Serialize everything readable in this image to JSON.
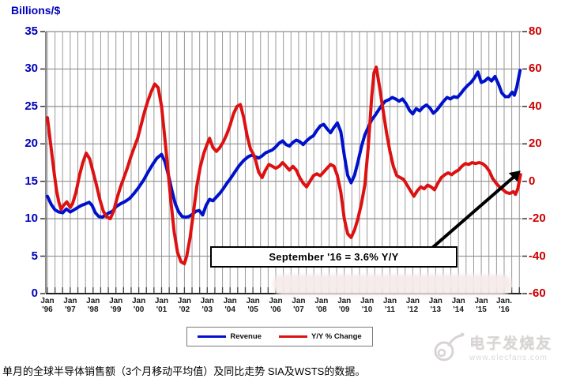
{
  "caption": "单月的全球半导体销售额（3个月移动平均值）及同比走势 SIA及WSTS的数据。",
  "watermark": {
    "brand": "电子发烧友",
    "site": "www.elecfans.com"
  },
  "legend": {
    "items": [
      {
        "label": "Revenue",
        "color": "#0011cc"
      },
      {
        "label": "Y/Y % Change",
        "color": "#dd1111"
      }
    ]
  },
  "annotation_label": "September '16 = 3.6% Y/Y",
  "chart_data": {
    "type": "line",
    "title": "",
    "y_axis_left": {
      "label": "Billions/$",
      "ticks": [
        35,
        30,
        25,
        20,
        15,
        10,
        5,
        0
      ],
      "range": [
        0,
        35
      ],
      "color": "#0000bb"
    },
    "y_axis_right": {
      "label": "Y/Y % Change",
      "ticks": [
        80,
        60,
        40,
        20,
        0,
        -20,
        -40,
        -60
      ],
      "range": [
        -60,
        80
      ],
      "color": "#cc0000"
    },
    "x_axis": {
      "range_years": [
        1996,
        2016.9
      ],
      "tick_labels": [
        [
          "Jan",
          "'96"
        ],
        [
          "Jan",
          "'97"
        ],
        [
          "Jan",
          "'98"
        ],
        [
          "Jan",
          "'99"
        ],
        [
          "Jan",
          "'00"
        ],
        [
          "Jan",
          "'01"
        ],
        [
          "Jan",
          "'02"
        ],
        [
          "Jan",
          "'03"
        ],
        [
          "Jan",
          "'04"
        ],
        [
          "Jan",
          "'05"
        ],
        [
          "Jan",
          "'06"
        ],
        [
          "Jan",
          "'07"
        ],
        [
          "Jan",
          "'08"
        ],
        [
          "Jan",
          "'09"
        ],
        [
          "Jan",
          "'10"
        ],
        [
          "Jan",
          "'11"
        ],
        [
          "Jan",
          "'12"
        ],
        [
          "Jan",
          "'13"
        ],
        [
          "Jan",
          "'14"
        ],
        [
          "Jan",
          "'15"
        ],
        [
          "Jan.",
          "'16"
        ]
      ]
    },
    "grid": {
      "vertical_every_months": 4,
      "horizontal_every": 5,
      "on": true
    },
    "legend_position": "bottom",
    "annotation": {
      "text": "September '16 = 3.6% Y/Y",
      "points_to": {
        "year": 2016.72,
        "value_pct": 3.6
      }
    },
    "series": [
      {
        "name": "Revenue",
        "axis": "left",
        "unit": "$B/month",
        "color": "#0011cc",
        "points": [
          [
            1996.0,
            13.0
          ],
          [
            1996.17,
            11.9
          ],
          [
            1996.33,
            11.2
          ],
          [
            1996.5,
            10.9
          ],
          [
            1996.67,
            10.8
          ],
          [
            1996.83,
            11.3
          ],
          [
            1997.0,
            10.9
          ],
          [
            1997.17,
            11.2
          ],
          [
            1997.33,
            11.5
          ],
          [
            1997.5,
            11.8
          ],
          [
            1997.67,
            12.0
          ],
          [
            1997.83,
            12.2
          ],
          [
            1997.95,
            11.8
          ],
          [
            1998.1,
            10.8
          ],
          [
            1998.25,
            10.3
          ],
          [
            1998.4,
            10.2
          ],
          [
            1998.55,
            10.5
          ],
          [
            1998.7,
            10.8
          ],
          [
            1998.85,
            11.0
          ],
          [
            1999.0,
            11.6
          ],
          [
            1999.2,
            12.0
          ],
          [
            1999.4,
            12.3
          ],
          [
            1999.6,
            12.7
          ],
          [
            1999.8,
            13.4
          ],
          [
            2000.0,
            14.2
          ],
          [
            2000.2,
            15.1
          ],
          [
            2000.4,
            16.2
          ],
          [
            2000.6,
            17.2
          ],
          [
            2000.8,
            18.1
          ],
          [
            2001.0,
            18.6
          ],
          [
            2001.15,
            17.6
          ],
          [
            2001.3,
            15.8
          ],
          [
            2001.45,
            13.8
          ],
          [
            2001.6,
            12.0
          ],
          [
            2001.75,
            10.9
          ],
          [
            2001.9,
            10.3
          ],
          [
            2002.05,
            10.2
          ],
          [
            2002.2,
            10.3
          ],
          [
            2002.35,
            10.6
          ],
          [
            2002.5,
            11.0
          ],
          [
            2002.65,
            11.1
          ],
          [
            2002.8,
            10.5
          ],
          [
            2002.95,
            11.8
          ],
          [
            2003.1,
            12.6
          ],
          [
            2003.25,
            12.4
          ],
          [
            2003.4,
            12.9
          ],
          [
            2003.55,
            13.4
          ],
          [
            2003.7,
            14.0
          ],
          [
            2003.85,
            14.7
          ],
          [
            2004.0,
            15.3
          ],
          [
            2004.2,
            16.2
          ],
          [
            2004.4,
            17.1
          ],
          [
            2004.6,
            17.8
          ],
          [
            2004.8,
            18.3
          ],
          [
            2004.95,
            18.5
          ],
          [
            2005.1,
            18.3
          ],
          [
            2005.25,
            18.1
          ],
          [
            2005.4,
            18.4
          ],
          [
            2005.55,
            18.8
          ],
          [
            2005.7,
            19.0
          ],
          [
            2005.85,
            19.2
          ],
          [
            2006.0,
            19.6
          ],
          [
            2006.15,
            20.1
          ],
          [
            2006.3,
            20.4
          ],
          [
            2006.45,
            19.9
          ],
          [
            2006.6,
            19.7
          ],
          [
            2006.75,
            20.2
          ],
          [
            2006.9,
            20.5
          ],
          [
            2007.05,
            20.3
          ],
          [
            2007.2,
            19.9
          ],
          [
            2007.35,
            20.4
          ],
          [
            2007.5,
            20.8
          ],
          [
            2007.65,
            21.1
          ],
          [
            2007.8,
            21.8
          ],
          [
            2007.95,
            22.4
          ],
          [
            2008.1,
            22.6
          ],
          [
            2008.25,
            22.0
          ],
          [
            2008.4,
            21.5
          ],
          [
            2008.55,
            22.2
          ],
          [
            2008.7,
            22.8
          ],
          [
            2008.85,
            21.6
          ],
          [
            2009.0,
            18.5
          ],
          [
            2009.15,
            15.8
          ],
          [
            2009.3,
            14.8
          ],
          [
            2009.45,
            15.8
          ],
          [
            2009.6,
            17.6
          ],
          [
            2009.75,
            19.6
          ],
          [
            2009.9,
            21.2
          ],
          [
            2010.05,
            22.2
          ],
          [
            2010.2,
            23.2
          ],
          [
            2010.35,
            23.8
          ],
          [
            2010.5,
            24.5
          ],
          [
            2010.65,
            25.2
          ],
          [
            2010.8,
            25.7
          ],
          [
            2010.95,
            25.9
          ],
          [
            2011.1,
            26.2
          ],
          [
            2011.25,
            26.0
          ],
          [
            2011.4,
            25.7
          ],
          [
            2011.55,
            26.0
          ],
          [
            2011.7,
            25.4
          ],
          [
            2011.85,
            24.5
          ],
          [
            2012.0,
            24.0
          ],
          [
            2012.15,
            24.7
          ],
          [
            2012.3,
            24.4
          ],
          [
            2012.45,
            24.9
          ],
          [
            2012.6,
            25.2
          ],
          [
            2012.75,
            24.8
          ],
          [
            2012.9,
            24.1
          ],
          [
            2013.05,
            24.5
          ],
          [
            2013.2,
            25.1
          ],
          [
            2013.35,
            25.7
          ],
          [
            2013.5,
            26.2
          ],
          [
            2013.65,
            26.0
          ],
          [
            2013.8,
            26.3
          ],
          [
            2013.95,
            26.2
          ],
          [
            2014.1,
            26.7
          ],
          [
            2014.25,
            27.3
          ],
          [
            2014.4,
            27.8
          ],
          [
            2014.55,
            28.2
          ],
          [
            2014.7,
            28.8
          ],
          [
            2014.85,
            29.6
          ],
          [
            2015.0,
            28.2
          ],
          [
            2015.15,
            28.4
          ],
          [
            2015.3,
            28.8
          ],
          [
            2015.45,
            28.4
          ],
          [
            2015.6,
            29.0
          ],
          [
            2015.75,
            28.0
          ],
          [
            2015.9,
            26.8
          ],
          [
            2016.05,
            26.3
          ],
          [
            2016.2,
            26.3
          ],
          [
            2016.35,
            26.9
          ],
          [
            2016.45,
            26.5
          ],
          [
            2016.55,
            27.5
          ],
          [
            2016.7,
            29.8
          ]
        ]
      },
      {
        "name": "Y/Y % Change",
        "axis": "right",
        "unit": "%",
        "color": "#dd1111",
        "points": [
          [
            1996.0,
            34
          ],
          [
            1996.1,
            24
          ],
          [
            1996.2,
            14
          ],
          [
            1996.3,
            4
          ],
          [
            1996.4,
            -5
          ],
          [
            1996.5,
            -11
          ],
          [
            1996.6,
            -15
          ],
          [
            1996.7,
            -13
          ],
          [
            1996.85,
            -11
          ],
          [
            1997.0,
            -14
          ],
          [
            1997.1,
            -12
          ],
          [
            1997.25,
            -6
          ],
          [
            1997.4,
            3
          ],
          [
            1997.55,
            10
          ],
          [
            1997.7,
            15
          ],
          [
            1997.85,
            12
          ],
          [
            1998.0,
            5
          ],
          [
            1998.15,
            -2
          ],
          [
            1998.3,
            -10
          ],
          [
            1998.45,
            -16
          ],
          [
            1998.6,
            -19
          ],
          [
            1998.75,
            -20
          ],
          [
            1998.9,
            -16
          ],
          [
            1999.05,
            -9
          ],
          [
            1999.2,
            -3
          ],
          [
            1999.35,
            2
          ],
          [
            1999.5,
            7
          ],
          [
            1999.65,
            13
          ],
          [
            1999.8,
            18
          ],
          [
            1999.95,
            23
          ],
          [
            2000.1,
            30
          ],
          [
            2000.25,
            37
          ],
          [
            2000.4,
            43
          ],
          [
            2000.55,
            48
          ],
          [
            2000.7,
            52
          ],
          [
            2000.85,
            50
          ],
          [
            2001.0,
            40
          ],
          [
            2001.1,
            28
          ],
          [
            2001.25,
            10
          ],
          [
            2001.4,
            -10
          ],
          [
            2001.55,
            -27
          ],
          [
            2001.7,
            -38
          ],
          [
            2001.85,
            -43
          ],
          [
            2002.0,
            -44
          ],
          [
            2002.1,
            -40
          ],
          [
            2002.25,
            -30
          ],
          [
            2002.4,
            -16
          ],
          [
            2002.55,
            -2
          ],
          [
            2002.7,
            8
          ],
          [
            2002.85,
            15
          ],
          [
            2003.0,
            20
          ],
          [
            2003.1,
            23
          ],
          [
            2003.25,
            18
          ],
          [
            2003.4,
            16
          ],
          [
            2003.55,
            18
          ],
          [
            2003.7,
            21
          ],
          [
            2003.85,
            25
          ],
          [
            2004.0,
            30
          ],
          [
            2004.15,
            36
          ],
          [
            2004.3,
            40
          ],
          [
            2004.45,
            41
          ],
          [
            2004.6,
            34
          ],
          [
            2004.75,
            24
          ],
          [
            2004.9,
            17
          ],
          [
            2005.0,
            15
          ],
          [
            2005.1,
            12
          ],
          [
            2005.25,
            5
          ],
          [
            2005.4,
            2
          ],
          [
            2005.55,
            6
          ],
          [
            2005.7,
            9
          ],
          [
            2005.85,
            8
          ],
          [
            2006.0,
            7
          ],
          [
            2006.15,
            8
          ],
          [
            2006.3,
            10
          ],
          [
            2006.45,
            8
          ],
          [
            2006.6,
            6
          ],
          [
            2006.75,
            8
          ],
          [
            2006.9,
            6
          ],
          [
            2007.05,
            2
          ],
          [
            2007.2,
            -1
          ],
          [
            2007.35,
            -3
          ],
          [
            2007.5,
            0
          ],
          [
            2007.65,
            3
          ],
          [
            2007.8,
            4
          ],
          [
            2007.95,
            3
          ],
          [
            2008.1,
            5
          ],
          [
            2008.25,
            7
          ],
          [
            2008.4,
            9
          ],
          [
            2008.55,
            8
          ],
          [
            2008.7,
            3
          ],
          [
            2008.85,
            -6
          ],
          [
            2009.0,
            -20
          ],
          [
            2009.15,
            -28
          ],
          [
            2009.3,
            -30
          ],
          [
            2009.45,
            -26
          ],
          [
            2009.6,
            -20
          ],
          [
            2009.75,
            -12
          ],
          [
            2009.9,
            -2
          ],
          [
            2010.05,
            18
          ],
          [
            2010.2,
            45
          ],
          [
            2010.3,
            58
          ],
          [
            2010.4,
            61
          ],
          [
            2010.55,
            50
          ],
          [
            2010.7,
            38
          ],
          [
            2010.85,
            26
          ],
          [
            2011.0,
            16
          ],
          [
            2011.15,
            8
          ],
          [
            2011.3,
            3
          ],
          [
            2011.45,
            2
          ],
          [
            2011.6,
            1
          ],
          [
            2011.75,
            -2
          ],
          [
            2011.9,
            -5
          ],
          [
            2012.05,
            -8
          ],
          [
            2012.2,
            -5
          ],
          [
            2012.35,
            -3
          ],
          [
            2012.5,
            -4
          ],
          [
            2012.65,
            -2
          ],
          [
            2012.8,
            -3
          ],
          [
            2012.95,
            -4.5
          ],
          [
            2013.1,
            -1
          ],
          [
            2013.25,
            2
          ],
          [
            2013.4,
            3.5
          ],
          [
            2013.55,
            4.5
          ],
          [
            2013.7,
            3.5
          ],
          [
            2013.85,
            5
          ],
          [
            2014.0,
            6
          ],
          [
            2014.15,
            8
          ],
          [
            2014.3,
            9.5
          ],
          [
            2014.45,
            9
          ],
          [
            2014.6,
            10
          ],
          [
            2014.75,
            9.5
          ],
          [
            2014.9,
            10
          ],
          [
            2015.05,
            9.5
          ],
          [
            2015.2,
            8
          ],
          [
            2015.35,
            5.5
          ],
          [
            2015.5,
            1.5
          ],
          [
            2015.65,
            -1
          ],
          [
            2015.8,
            -3
          ],
          [
            2015.95,
            -4.5
          ],
          [
            2016.1,
            -6
          ],
          [
            2016.25,
            -6.5
          ],
          [
            2016.4,
            -5.5
          ],
          [
            2016.5,
            -7
          ],
          [
            2016.6,
            -4
          ],
          [
            2016.72,
            3.6
          ]
        ]
      }
    ]
  }
}
